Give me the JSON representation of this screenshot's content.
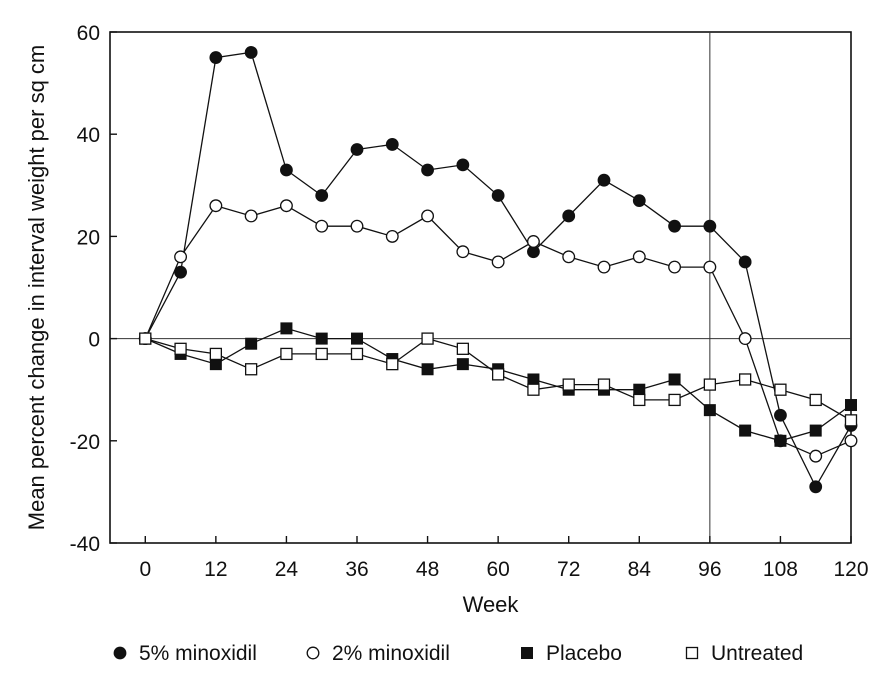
{
  "chart_data": {
    "type": "line",
    "xlabel": "Week",
    "ylabel": "Mean percent change in interval weight per sq cm",
    "xlim": [
      -6,
      120
    ],
    "ylim": [
      -40,
      60
    ],
    "xticks": [
      0,
      12,
      24,
      36,
      48,
      60,
      72,
      84,
      96,
      108,
      120
    ],
    "yticks": [
      -40,
      -20,
      0,
      20,
      40,
      60
    ],
    "reference_lines": {
      "x": 96,
      "y": 0
    },
    "grid": false,
    "legend_position": "bottom",
    "x": [
      0,
      6,
      12,
      18,
      24,
      30,
      36,
      42,
      48,
      54,
      60,
      66,
      72,
      78,
      84,
      90,
      96,
      102,
      108,
      114,
      120
    ],
    "series": [
      {
        "name": "5% minoxidil",
        "marker": "filled-circle",
        "values": [
          0,
          13,
          55,
          56,
          33,
          28,
          37,
          38,
          33,
          34,
          28,
          17,
          24,
          31,
          27,
          22,
          22,
          15,
          -15,
          -29,
          -17
        ]
      },
      {
        "name": "2% minoxidil",
        "marker": "open-circle",
        "values": [
          0,
          16,
          26,
          24,
          26,
          22,
          22,
          20,
          24,
          17,
          15,
          19,
          16,
          14,
          16,
          14,
          14,
          0,
          -20,
          -23,
          -20
        ]
      },
      {
        "name": "Placebo",
        "marker": "filled-square",
        "values": [
          0,
          -3,
          -5,
          -1,
          2,
          0,
          0,
          -4,
          -6,
          -5,
          -6,
          -8,
          -10,
          -10,
          -10,
          -8,
          -14,
          -18,
          -20,
          -18,
          -13
        ]
      },
      {
        "name": "Untreated",
        "marker": "open-square",
        "values": [
          0,
          -2,
          -3,
          -6,
          -3,
          -3,
          -3,
          -5,
          0,
          -2,
          -7,
          -10,
          -9,
          -9,
          -12,
          -12,
          -9,
          -8,
          -10,
          -12,
          -16
        ]
      }
    ]
  }
}
